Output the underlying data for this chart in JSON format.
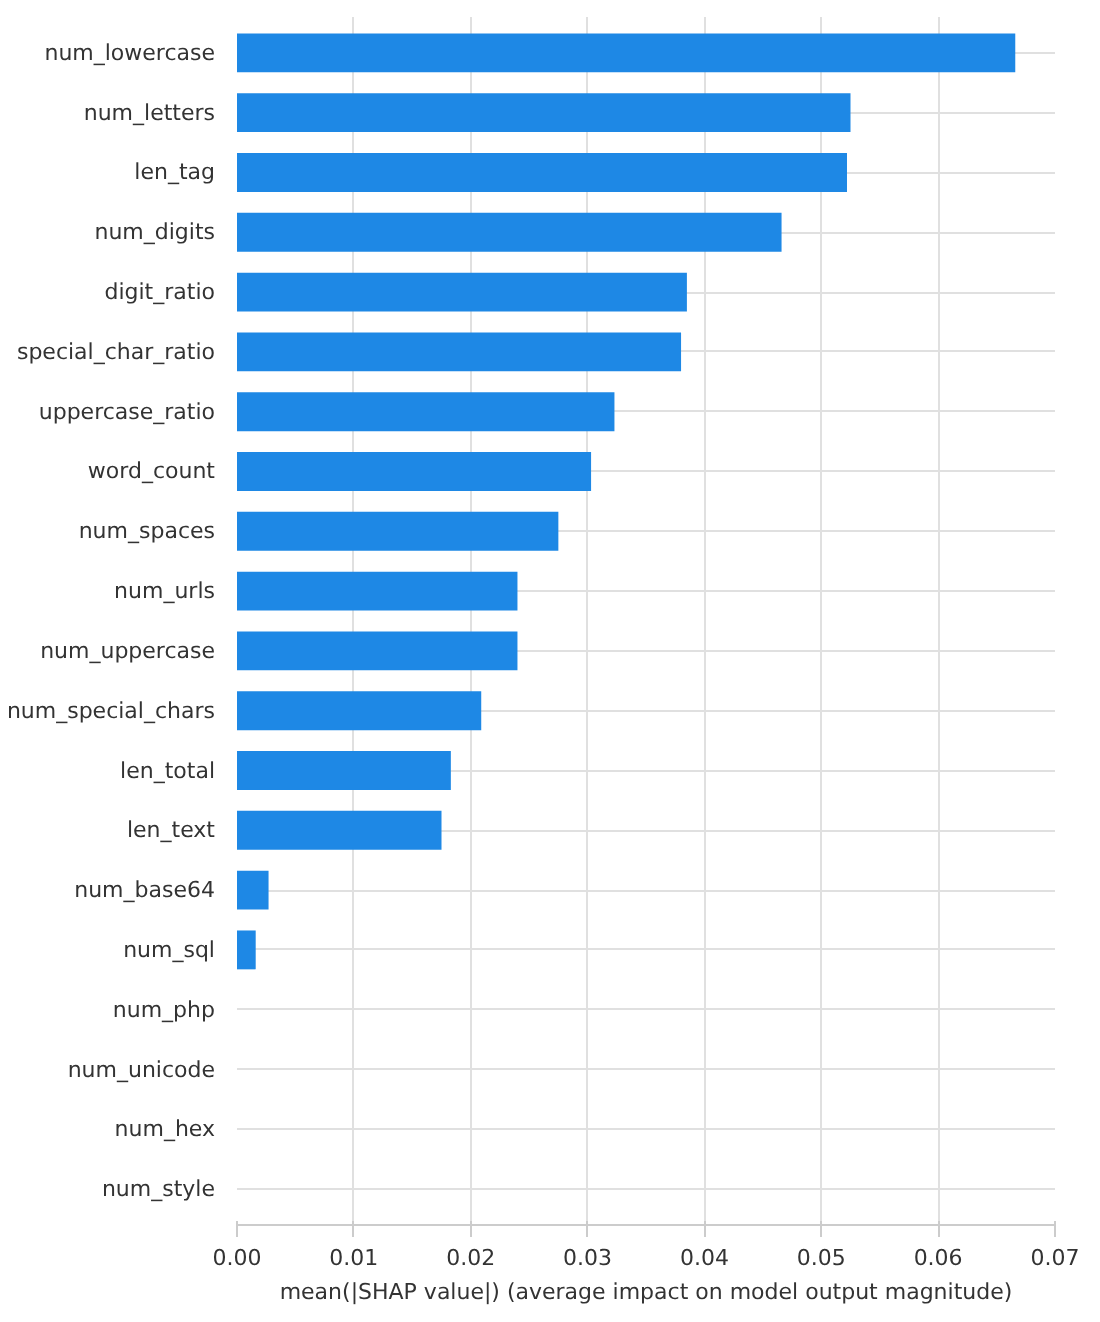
{
  "chart_data": {
    "type": "bar",
    "orientation": "horizontal",
    "xlabel": "mean(|SHAP value|) (average impact on model output magnitude)",
    "categories": [
      "num_lowercase",
      "num_letters",
      "len_tag",
      "num_digits",
      "digit_ratio",
      "special_char_ratio",
      "uppercase_ratio",
      "word_count",
      "num_spaces",
      "num_urls",
      "num_uppercase",
      "num_special_chars",
      "len_total",
      "len_text",
      "num_base64",
      "num_sql",
      "num_php",
      "num_unicode",
      "num_hex",
      "num_style"
    ],
    "values": [
      0.0666,
      0.0525,
      0.0522,
      0.0466,
      0.0385,
      0.038,
      0.0323,
      0.0303,
      0.0275,
      0.024,
      0.024,
      0.0209,
      0.0183,
      0.0175,
      0.0027,
      0.0016,
      0,
      0,
      0,
      0
    ],
    "color": "#1e88e5",
    "xlim": [
      0,
      0.07
    ],
    "xticks": [
      {
        "value": 0,
        "label": "0.00"
      },
      {
        "value": 0.01,
        "label": "0.01"
      },
      {
        "value": 0.02,
        "label": "0.02"
      },
      {
        "value": 0.03,
        "label": "0.03"
      },
      {
        "value": 0.04,
        "label": "0.04"
      },
      {
        "value": 0.05,
        "label": "0.05"
      },
      {
        "value": 0.06,
        "label": "0.06"
      },
      {
        "value": 0.07,
        "label": "0.07"
      }
    ],
    "grid": true
  }
}
